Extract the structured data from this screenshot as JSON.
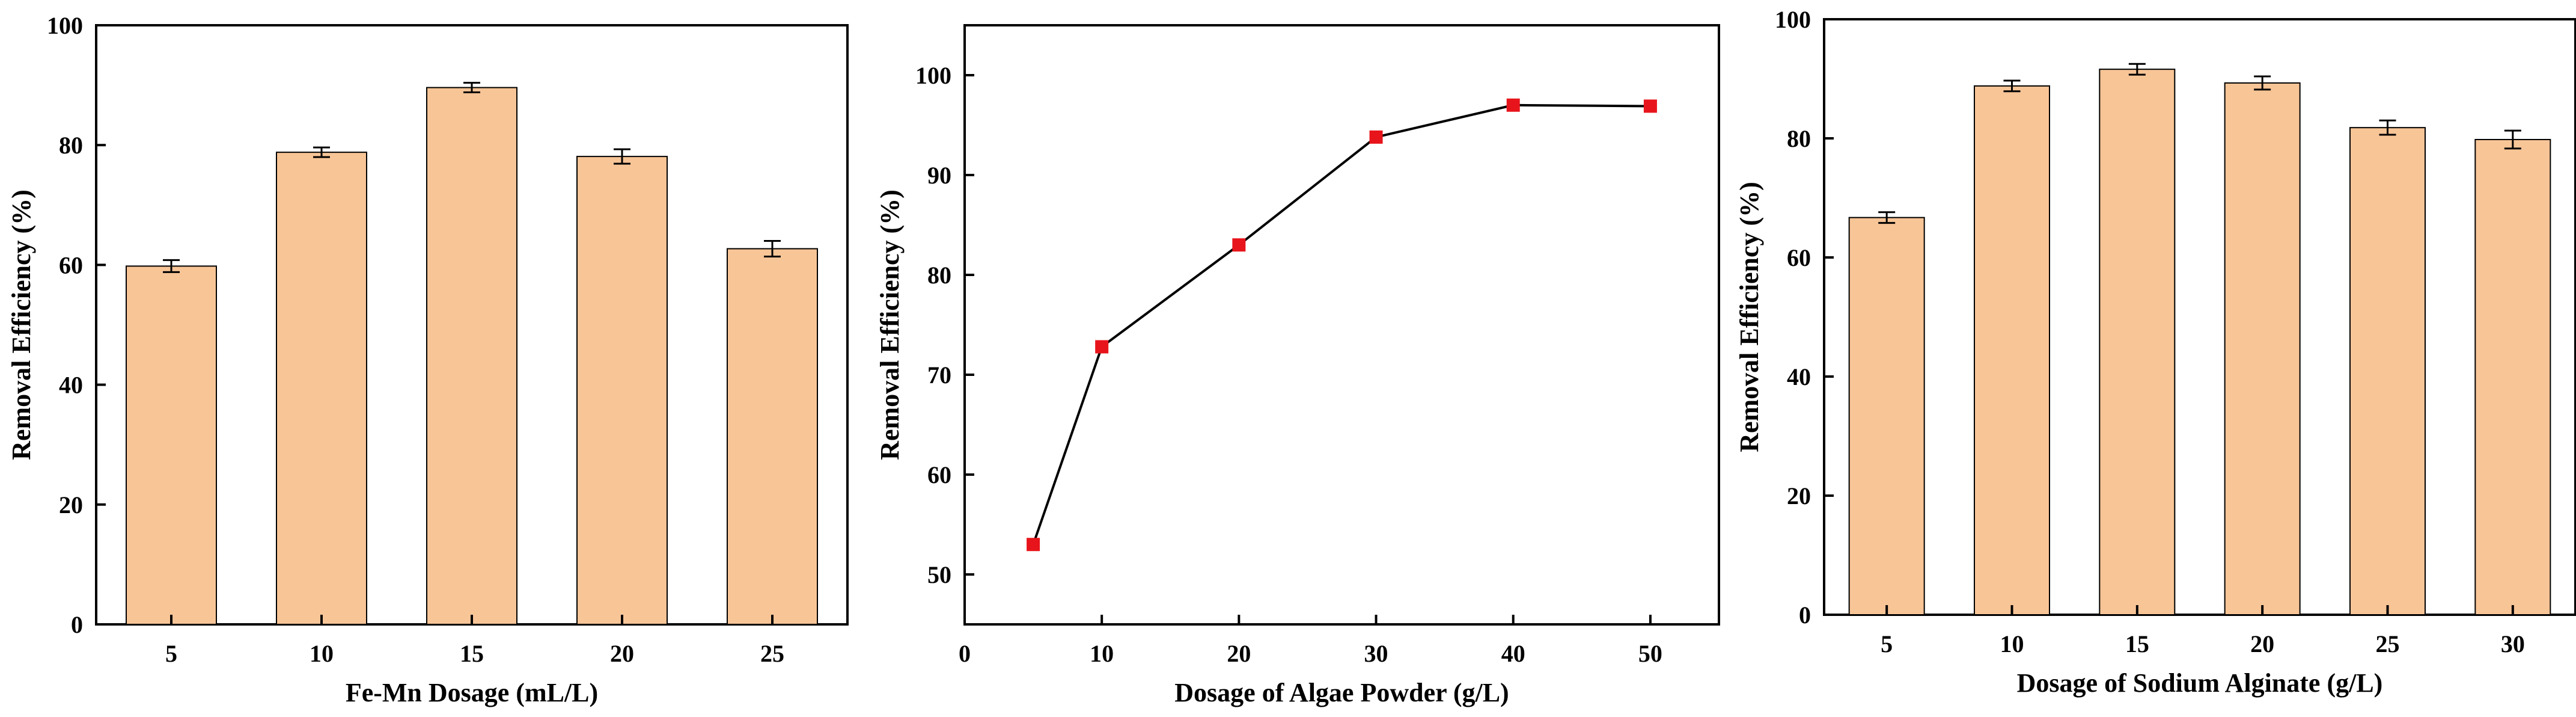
{
  "chart_data": [
    {
      "type": "bar",
      "xlabel": "Fe-Mn Dosage (mL/L)",
      "ylabel": "Removal Efficiency (%)",
      "categories": [
        "5",
        "10",
        "15",
        "20",
        "25"
      ],
      "values": [
        59.8,
        78.8,
        89.6,
        78.1,
        62.7
      ],
      "errors": [
        1.0,
        0.8,
        0.8,
        1.2,
        1.3
      ],
      "ylim": [
        0,
        100
      ],
      "yticks": [
        0,
        20,
        40,
        60,
        80,
        100
      ],
      "bar_color": "#F8C597",
      "grid": false
    },
    {
      "type": "line",
      "xlabel": "Dosage of Algae Powder (g/L)",
      "ylabel": "Removal Efficiency (%)",
      "x": [
        5,
        10,
        20,
        30,
        40,
        50
      ],
      "y": [
        53.0,
        72.8,
        83.0,
        93.8,
        97.0,
        96.9
      ],
      "xlim": [
        0,
        55
      ],
      "ylim": [
        45,
        105
      ],
      "xticks": [
        0,
        10,
        20,
        30,
        40,
        50
      ],
      "yticks": [
        50,
        60,
        70,
        80,
        90,
        100
      ],
      "marker": "square",
      "marker_color": "#E8141B",
      "line_color": "#000000",
      "grid": false
    },
    {
      "type": "bar",
      "xlabel": "Dosage of Sodium Alginate (g/L)",
      "ylabel": "Removal Efficiency (%)",
      "categories": [
        "5",
        "10",
        "15",
        "20",
        "25",
        "30"
      ],
      "values": [
        66.7,
        88.8,
        91.6,
        89.3,
        81.8,
        79.8
      ],
      "errors": [
        0.9,
        0.9,
        0.9,
        1.1,
        1.2,
        1.5
      ],
      "ylim": [
        0,
        100
      ],
      "yticks": [
        0,
        20,
        40,
        60,
        80,
        100
      ],
      "bar_color": "#F8C597",
      "grid": false
    }
  ]
}
